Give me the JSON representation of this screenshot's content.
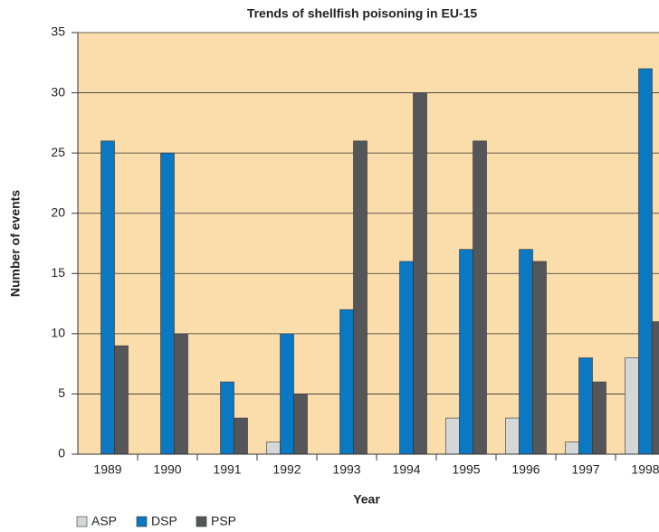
{
  "chart_data": {
    "type": "bar",
    "title": "Trends of shellfish poisoning in EU-15",
    "x_label": "Year",
    "y_label": "Number of events",
    "categories": [
      "1989",
      "1990",
      "1991",
      "1992",
      "1993",
      "1994",
      "1995",
      "1996",
      "1997",
      "1998"
    ],
    "series": [
      {
        "name": "ASP",
        "color": "#d4d6d8",
        "values": [
          0,
          0,
          0,
          1,
          0,
          0,
          3,
          3,
          1,
          8
        ]
      },
      {
        "name": "DSP",
        "color": "#0a78c2",
        "values": [
          26,
          25,
          6,
          10,
          12,
          16,
          17,
          17,
          8,
          32
        ]
      },
      {
        "name": "PSP",
        "color": "#55565a",
        "values": [
          9,
          10,
          3,
          5,
          26,
          30,
          26,
          16,
          6,
          11
        ]
      }
    ],
    "ylim": [
      0,
      35
    ],
    "yticks": [
      0,
      5,
      10,
      15,
      20,
      25,
      30,
      35
    ],
    "grid": true,
    "background": "#fbdcab"
  }
}
